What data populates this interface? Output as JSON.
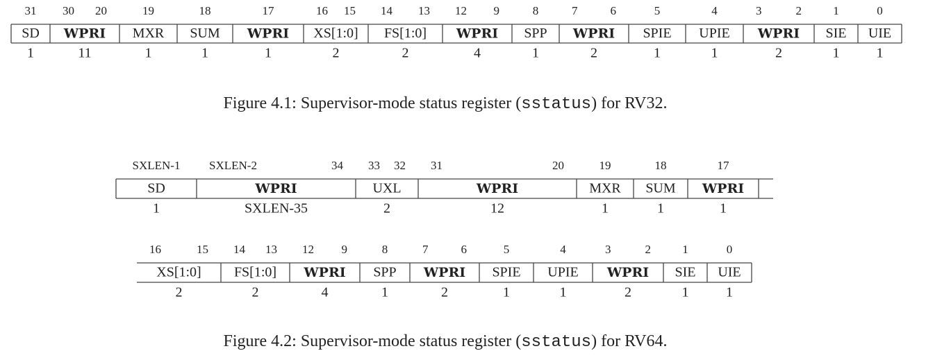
{
  "figures": [
    {
      "rows": [
        {
          "fields": [
            {
              "bits": [
                31
              ],
              "name": "SD",
              "width": 1
            },
            {
              "bits": [
                30,
                20
              ],
              "name": "WPRI",
              "width": 11,
              "bold": true
            },
            {
              "bits": [
                19
              ],
              "name": "MXR",
              "width": 1
            },
            {
              "bits": [
                18
              ],
              "name": "SUM",
              "width": 1
            },
            {
              "bits": [
                17
              ],
              "name": "WPRI",
              "width": 1,
              "bold": true
            },
            {
              "bits": [
                16,
                15
              ],
              "name": "XS[1:0]",
              "width": 2
            },
            {
              "bits": [
                14,
                13
              ],
              "name": "FS[1:0]",
              "width": 2
            },
            {
              "bits": [
                12,
                9
              ],
              "name": "WPRI",
              "width": 4,
              "bold": true
            },
            {
              "bits": [
                8
              ],
              "name": "SPP",
              "width": 1
            },
            {
              "bits": [
                7,
                6
              ],
              "name": "WPRI",
              "width": 2,
              "bold": true
            },
            {
              "bits": [
                5
              ],
              "name": "SPIE",
              "width": 1
            },
            {
              "bits": [
                4
              ],
              "name": "UPIE",
              "width": 1
            },
            {
              "bits": [
                3,
                2
              ],
              "name": "WPRI",
              "width": 2,
              "bold": true
            },
            {
              "bits": [
                1
              ],
              "name": "SIE",
              "width": 1
            },
            {
              "bits": [
                0
              ],
              "name": "UIE",
              "width": 1
            }
          ]
        }
      ],
      "caption_pre": "Figure 4.1: Supervisor-mode status register (",
      "caption_code": "sstatus",
      "caption_post": ") for RV32."
    },
    {
      "rows": [
        {
          "fields": [
            {
              "bits": [
                "SXLEN-1"
              ],
              "name": "SD",
              "width": 1
            },
            {
              "bits": [
                "SXLEN-2",
                34
              ],
              "name": "WPRI",
              "width": "SXLEN-35",
              "bold": true
            },
            {
              "bits": [
                33,
                32
              ],
              "name": "UXL",
              "width": 2
            },
            {
              "bits": [
                31,
                20
              ],
              "name": "WPRI",
              "width": 12,
              "bold": true
            },
            {
              "bits": [
                19
              ],
              "name": "MXR",
              "width": 1
            },
            {
              "bits": [
                18
              ],
              "name": "SUM",
              "width": 1
            },
            {
              "bits": [
                17
              ],
              "name": "WPRI",
              "width": 1,
              "bold": true
            }
          ]
        },
        {
          "fields": [
            {
              "bits": [
                16,
                15
              ],
              "name": "XS[1:0]",
              "width": 2
            },
            {
              "bits": [
                14,
                13
              ],
              "name": "FS[1:0]",
              "width": 2
            },
            {
              "bits": [
                12,
                9
              ],
              "name": "WPRI",
              "width": 4,
              "bold": true
            },
            {
              "bits": [
                8
              ],
              "name": "SPP",
              "width": 1
            },
            {
              "bits": [
                7,
                6
              ],
              "name": "WPRI",
              "width": 2,
              "bold": true
            },
            {
              "bits": [
                5
              ],
              "name": "SPIE",
              "width": 1
            },
            {
              "bits": [
                4
              ],
              "name": "UPIE",
              "width": 1
            },
            {
              "bits": [
                3,
                2
              ],
              "name": "WPRI",
              "width": 2,
              "bold": true
            },
            {
              "bits": [
                1
              ],
              "name": "SIE",
              "width": 1
            },
            {
              "bits": [
                0
              ],
              "name": "UIE",
              "width": 1
            }
          ]
        }
      ],
      "caption_pre": "Figure 4.2: Supervisor-mode status register (",
      "caption_code": "sstatus",
      "caption_post": ") for RV64."
    }
  ]
}
